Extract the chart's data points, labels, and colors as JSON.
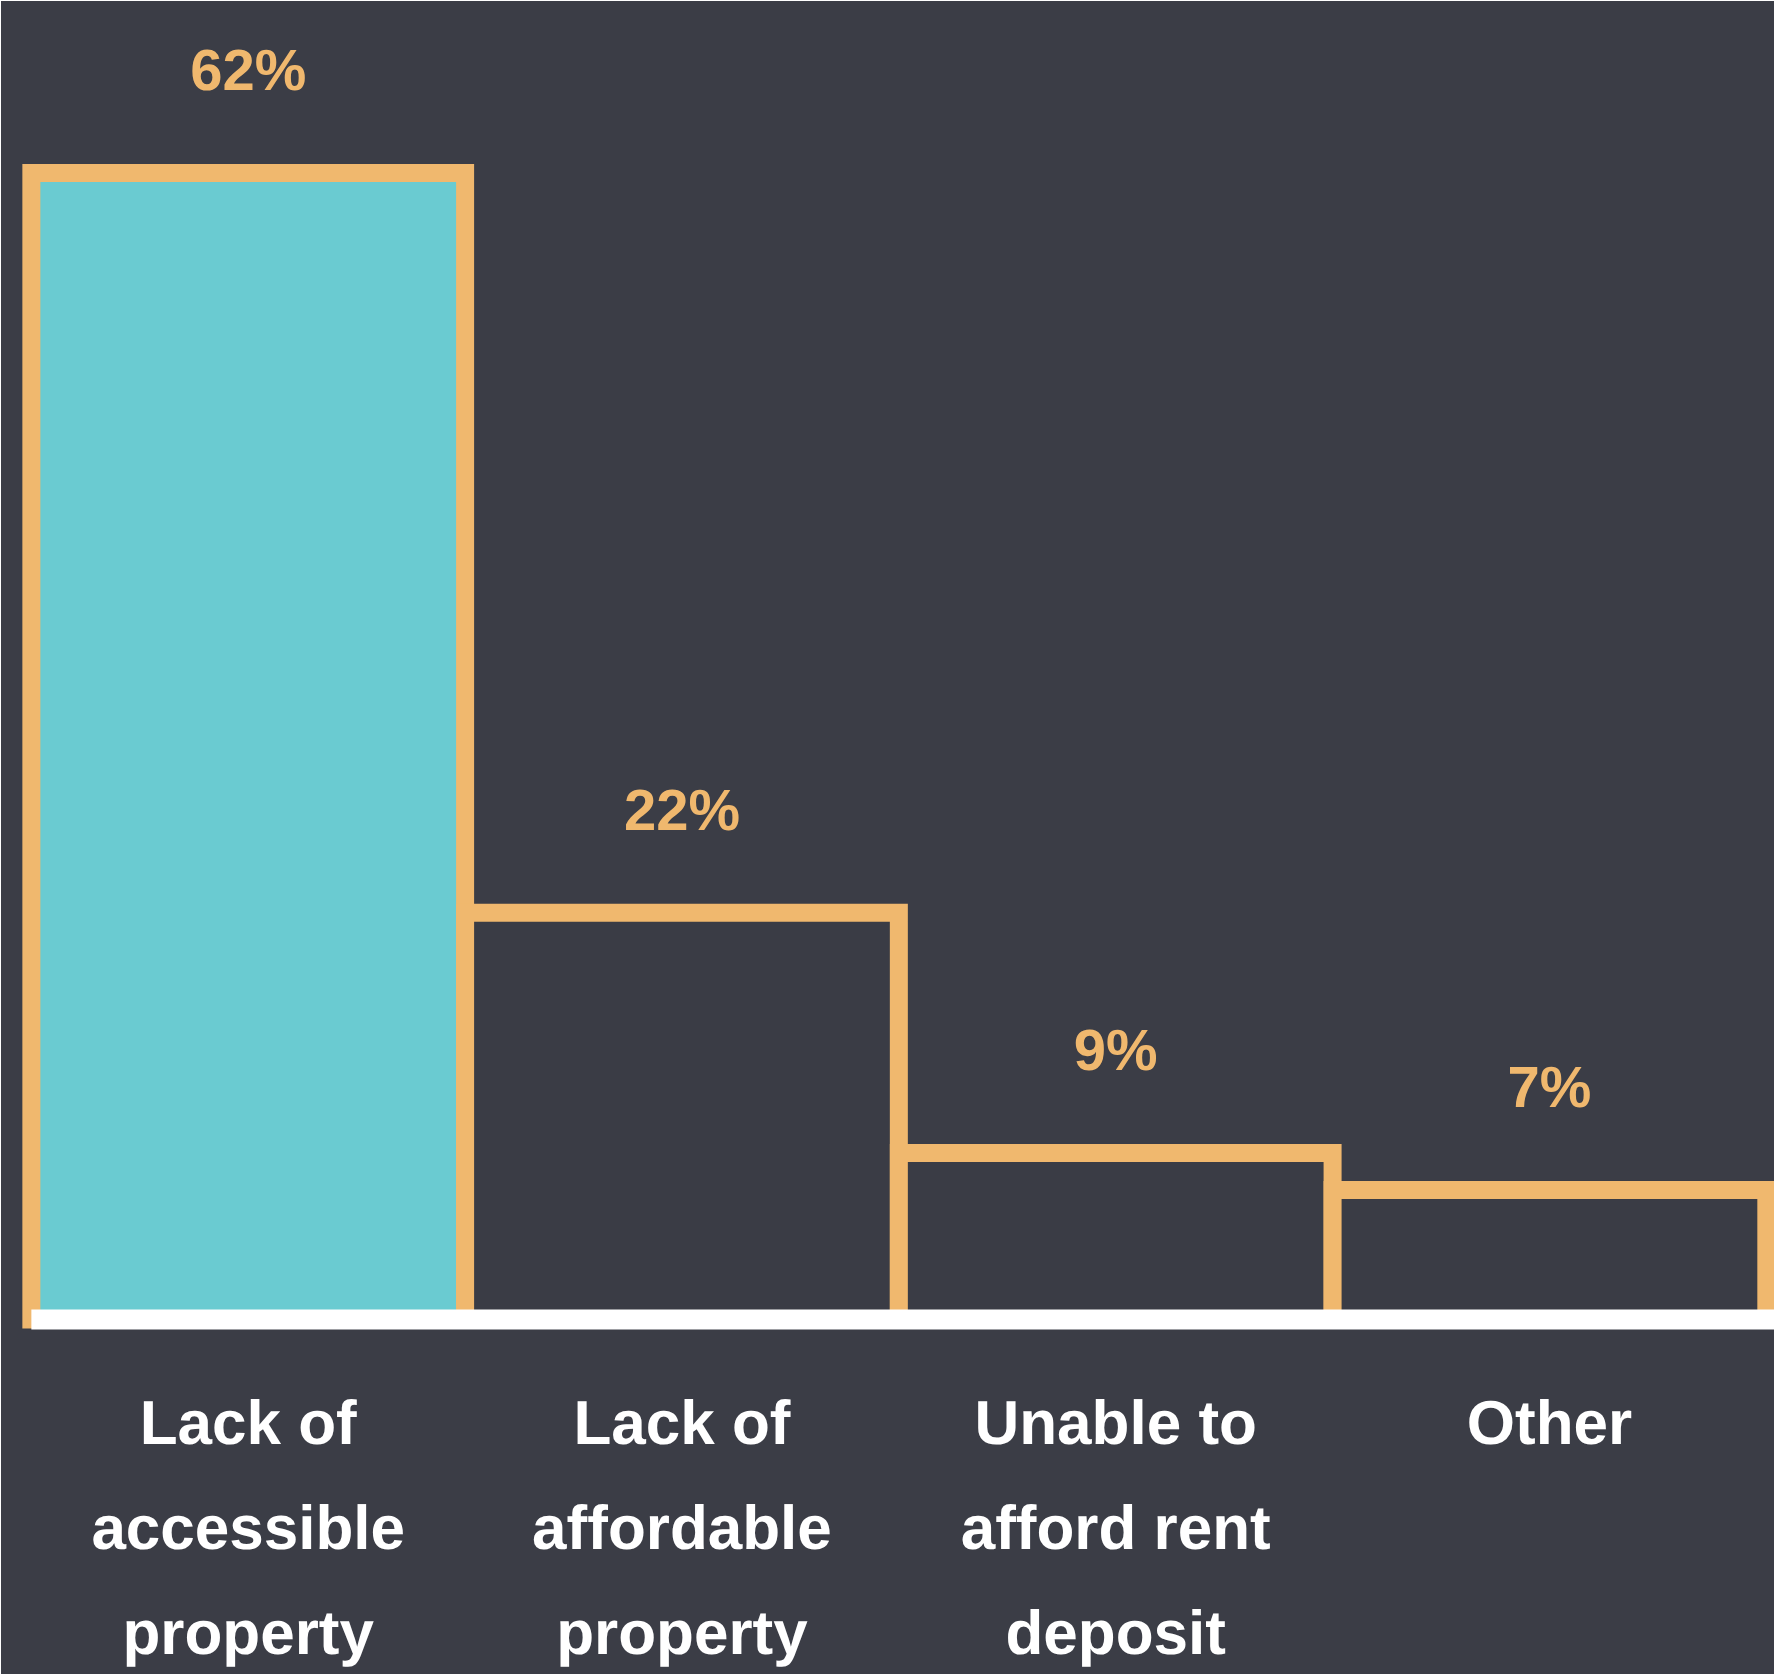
{
  "chart_data": {
    "type": "bar",
    "categories": [
      "Lack of accessible property",
      "Lack of affordable property",
      "Unable to afford rent deposit",
      "Other"
    ],
    "values": [
      62,
      22,
      9,
      7
    ],
    "colors": [
      "#6acbd1",
      "#3a3c45",
      "#3a3c45",
      "#3a3c45"
    ],
    "value_labels": [
      "62%",
      "22%",
      "9%",
      "7%"
    ],
    "grid": false
  }
}
